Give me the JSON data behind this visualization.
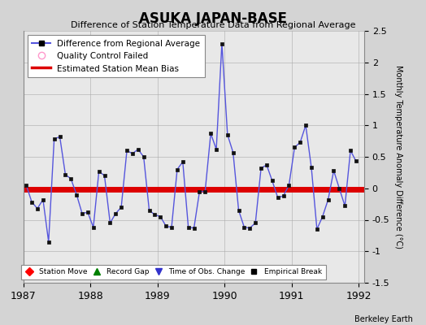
{
  "title": "ASUKA JAPAN-BASE",
  "subtitle": "Difference of Station Temperature Data from Regional Average",
  "ylabel": "Monthly Temperature Anomaly Difference (°C)",
  "credit": "Berkeley Earth",
  "xlim": [
    1987.0,
    1992.08
  ],
  "ylim": [
    -1.5,
    2.5
  ],
  "yticks": [
    -1.5,
    -1.0,
    -0.5,
    0.0,
    0.5,
    1.0,
    1.5,
    2.0,
    2.5
  ],
  "xticks": [
    1987,
    1988,
    1989,
    1990,
    1991,
    1992
  ],
  "bias": -0.02,
  "line_color": "#5555dd",
  "marker_color": "#111111",
  "bias_color": "#dd0000",
  "fig_bg": "#d4d4d4",
  "plot_bg": "#e8e8e8",
  "times": [
    1987.042,
    1987.125,
    1987.208,
    1987.292,
    1987.375,
    1987.458,
    1987.542,
    1987.625,
    1987.708,
    1987.792,
    1987.875,
    1987.958,
    1988.042,
    1988.125,
    1988.208,
    1988.292,
    1988.375,
    1988.458,
    1988.542,
    1988.625,
    1988.708,
    1988.792,
    1988.875,
    1988.958,
    1989.042,
    1989.125,
    1989.208,
    1989.292,
    1989.375,
    1989.458,
    1989.542,
    1989.625,
    1989.708,
    1989.792,
    1989.875,
    1989.958,
    1990.042,
    1990.125,
    1990.208,
    1990.292,
    1990.375,
    1990.458,
    1990.542,
    1990.625,
    1990.708,
    1990.792,
    1990.875,
    1990.958,
    1991.042,
    1991.125,
    1991.208,
    1991.292,
    1991.375,
    1991.458,
    1991.542,
    1991.625,
    1991.708,
    1991.792,
    1991.875,
    1991.958
  ],
  "values": [
    0.05,
    -0.22,
    -0.32,
    -0.18,
    -0.85,
    0.78,
    0.82,
    0.22,
    0.15,
    -0.1,
    -0.4,
    -0.38,
    -0.62,
    0.27,
    0.2,
    -0.55,
    -0.4,
    -0.3,
    0.6,
    0.55,
    0.62,
    0.5,
    -0.35,
    -0.42,
    -0.45,
    -0.6,
    -0.62,
    0.3,
    0.42,
    -0.62,
    -0.63,
    -0.05,
    -0.05,
    0.87,
    0.62,
    2.3,
    0.85,
    0.57,
    -0.35,
    -0.62,
    -0.63,
    -0.55,
    0.32,
    0.37,
    0.12,
    -0.15,
    -0.12,
    0.05,
    0.65,
    0.73,
    1.0,
    0.33,
    -0.65,
    -0.45,
    -0.18,
    0.28,
    0.0,
    -0.28,
    0.6,
    0.43
  ]
}
